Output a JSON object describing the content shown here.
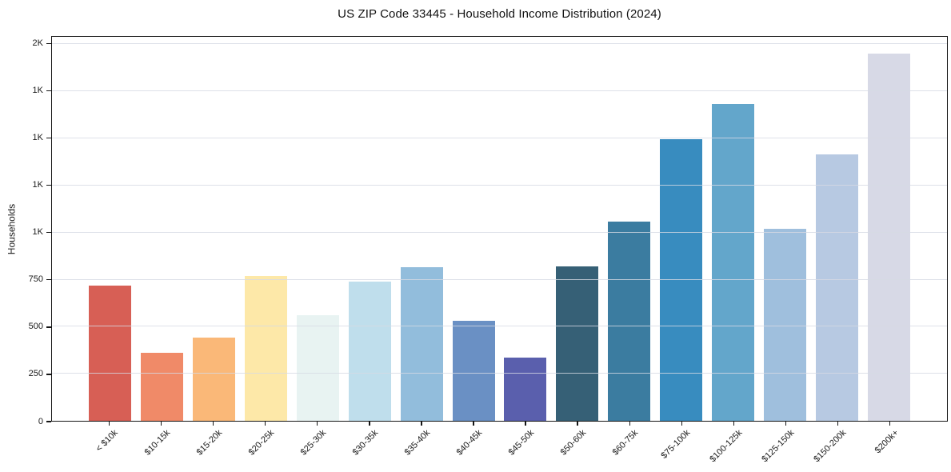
{
  "chart_data": {
    "type": "bar",
    "title": "US ZIP Code 33445 - Household Income Distribution (2024)",
    "xlabel": "",
    "ylabel": "Households",
    "categories": [
      "< $10k",
      "$10-15k",
      "$15-20k",
      "$20-25k",
      "$25-30k",
      "$30-35k",
      "$35-40k",
      "$40-45k",
      "$45-50k",
      "$50-60k",
      "$60-75k",
      "$75-100k",
      "$100-125k",
      "$125-150k",
      "$150-200k",
      "$200k+"
    ],
    "values": [
      720,
      360,
      440,
      770,
      560,
      740,
      815,
      530,
      335,
      820,
      1060,
      1495,
      1685,
      1020,
      1415,
      1950
    ],
    "bar_colors": [
      "#d75f55",
      "#f08a68",
      "#fab878",
      "#fde8a8",
      "#e8f3f2",
      "#bfdeec",
      "#92bddc",
      "#6a90c4",
      "#5a5fad",
      "#366076",
      "#3b7ca0",
      "#388cbf",
      "#63a6cb",
      "#9fbfdd",
      "#b7c9e2",
      "#d7d9e6"
    ],
    "ylim": [
      0,
      2040
    ],
    "yticks": [
      {
        "value": 0,
        "label": "0"
      },
      {
        "value": 250,
        "label": "250"
      },
      {
        "value": 500,
        "label": "500"
      },
      {
        "value": 750,
        "label": "750"
      },
      {
        "value": 1000,
        "label": "1K"
      },
      {
        "value": 1250,
        "label": "1K"
      },
      {
        "value": 1500,
        "label": "1K"
      },
      {
        "value": 1750,
        "label": "1K"
      },
      {
        "value": 2000,
        "label": "2K"
      }
    ],
    "grid": "horizontal",
    "legend": "none",
    "frame_color": "#151515",
    "background": "#ffffff"
  }
}
